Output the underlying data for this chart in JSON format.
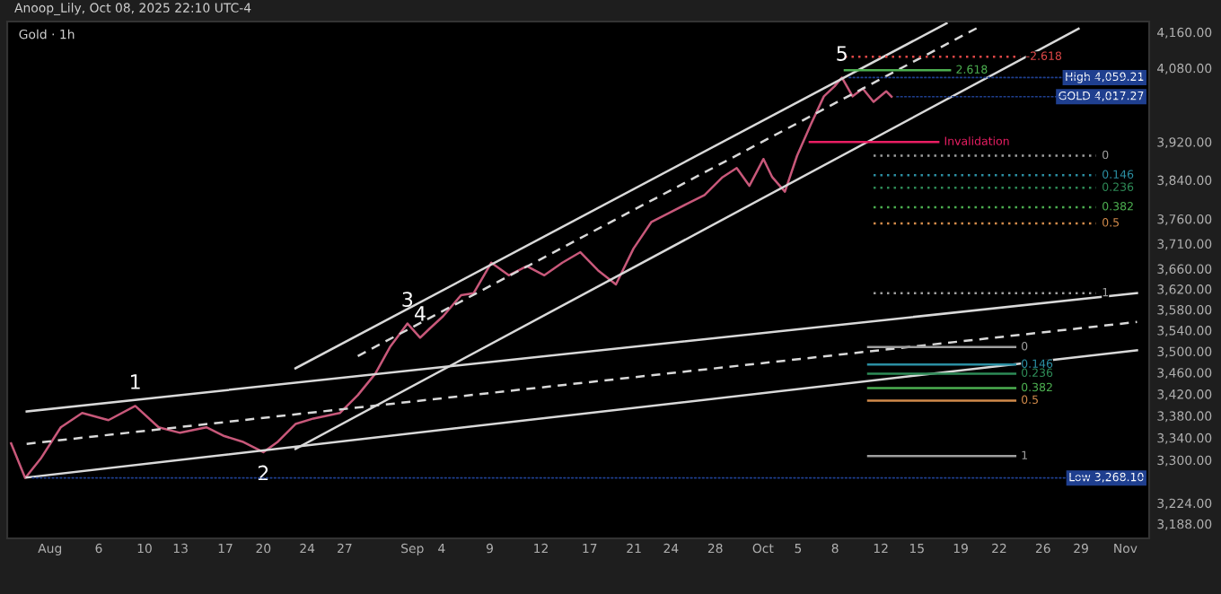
{
  "chart_data": {
    "type": "line",
    "title": "Anoop_Lily, Oct 08, 2025 22:10 UTC-4",
    "subtitle": "Gold · 1h",
    "log": "y",
    "grid": false,
    "legend": false,
    "xlim": [
      "2025-07-28T08:00",
      "2025-11-03T01:00"
    ],
    "ylim": [
      3163,
      4184
    ],
    "xticks": [
      {
        "value": "2025-08-01",
        "label": "Aug"
      },
      {
        "value": "2025-08-05T04:00",
        "label": "6"
      },
      {
        "value": "2025-08-09T02:00",
        "label": "10"
      },
      {
        "value": "2025-08-12T04:00",
        "label": "13"
      },
      {
        "value": "2025-08-16",
        "label": "17"
      },
      {
        "value": "2025-08-19T06:00",
        "label": "20"
      },
      {
        "value": "2025-08-23",
        "label": "24"
      },
      {
        "value": "2025-08-26T05:00",
        "label": "27"
      },
      {
        "value": "2025-09-01",
        "label": "Sep"
      },
      {
        "value": "2025-09-03T12:00",
        "label": "4"
      },
      {
        "value": "2025-09-07T15:00",
        "label": "9"
      },
      {
        "value": "2025-09-12",
        "label": "12"
      },
      {
        "value": "2025-09-16T04:00",
        "label": "17"
      },
      {
        "value": "2025-09-19T23:00",
        "label": "21"
      },
      {
        "value": "2025-09-23T03:00",
        "label": "24"
      },
      {
        "value": "2025-09-26T22:00",
        "label": "28"
      },
      {
        "value": "2025-10-01",
        "label": "Oct"
      },
      {
        "value": "2025-10-04",
        "label": "5"
      },
      {
        "value": "2025-10-07T04:00",
        "label": "8"
      },
      {
        "value": "2025-10-11T02:00",
        "label": "12"
      },
      {
        "value": "2025-10-14T04:00",
        "label": "15"
      },
      {
        "value": "2025-10-17T22:00",
        "label": "19"
      },
      {
        "value": "2025-10-21T05:00",
        "label": "22"
      },
      {
        "value": "2025-10-24T23:00",
        "label": "26"
      },
      {
        "value": "2025-10-28T05:00",
        "label": "29"
      },
      {
        "value": "2025-11-01",
        "label": "Nov"
      }
    ],
    "yticks": [
      {
        "value": 4160,
        "label": "4,160.00"
      },
      {
        "value": 4080,
        "label": "4,080.00"
      },
      {
        "value": 3920,
        "label": "3,920.00"
      },
      {
        "value": 3840,
        "label": "3,840.00"
      },
      {
        "value": 3760,
        "label": "3,760.00"
      },
      {
        "value": 3710,
        "label": "3,710.00"
      },
      {
        "value": 3660,
        "label": "3,660.00"
      },
      {
        "value": 3620,
        "label": "3,620.00"
      },
      {
        "value": 3580,
        "label": "3,580.00"
      },
      {
        "value": 3540,
        "label": "3,540.00"
      },
      {
        "value": 3500,
        "label": "3,500.00"
      },
      {
        "value": 3460,
        "label": "3,460.00"
      },
      {
        "value": 3420,
        "label": "3,420.00"
      },
      {
        "value": 3380,
        "label": "3,380.00"
      },
      {
        "value": 3340,
        "label": "3,340.00"
      },
      {
        "value": 3300,
        "label": "3,300.00"
      },
      {
        "value": 3224,
        "label": "3,224.00"
      },
      {
        "value": 3188,
        "label": "3,188.00"
      }
    ],
    "series": [
      {
        "color": "#c8587a",
        "x": [
          "2025-07-28T16:00",
          "2025-07-29T21:00",
          "2025-07-31T06:00",
          "2025-08-01T22:00",
          "2025-08-03T18:00",
          "2025-08-06",
          "2025-08-08T07:00",
          "2025-08-10T07:00",
          "2025-08-12T03:00",
          "2025-08-14T09:00",
          "2025-08-15T22:00",
          "2025-08-17T11:00",
          "2025-08-19T06:00",
          "2025-08-20T12:00",
          "2025-08-22",
          "2025-08-23T13:00",
          "2025-08-25T19:00",
          "2025-08-27T08:00",
          "2025-08-28T20:00",
          "2025-08-30T02:00",
          "2025-08-31T14:00",
          "2025-09-01T16:00",
          "2025-09-02T10:00",
          "2025-09-03T15:00",
          "2025-09-05T04:00",
          "2025-09-06T06:00",
          "2025-09-07T18:00",
          "2025-09-09T06:00",
          "2025-09-10T19:00",
          "2025-09-12T07:00",
          "2025-09-13T20:00",
          "2025-09-15T09:00",
          "2025-09-16T21:00",
          "2025-09-18T10:00",
          "2025-09-19T22:00",
          "2025-09-21T11:00",
          "2025-09-22T23:00",
          "2025-09-24T12:00",
          "2025-09-26",
          "2025-09-27T13:00",
          "2025-09-28T18:00",
          "2025-09-29T20:00",
          "2025-10-01T01:00",
          "2025-10-01T19:00",
          "2025-10-02T21:00",
          "2025-10-03T22:00",
          "2025-10-05T03:00",
          "2025-10-06T05:00",
          "2025-10-07T03:00",
          "2025-10-07T18:00",
          "2025-10-08T16:00",
          "2025-10-09T13:00",
          "2025-10-10T11:00",
          "2025-10-11T13:00",
          "2025-10-12"
        ],
        "values": [
          3330,
          3268.1,
          3304,
          3359,
          3385,
          3372,
          3398,
          3359,
          3349,
          3359,
          3343,
          3333,
          3314,
          3333,
          3365,
          3375,
          3385,
          3418,
          3458,
          3508,
          3553,
          3526,
          3542,
          3567,
          3608,
          3612,
          3672,
          3647,
          3665,
          3647,
          3672,
          3693,
          3657,
          3629,
          3700,
          3754,
          3772,
          3791,
          3809,
          3846,
          3865,
          3828,
          3884,
          3846,
          3816,
          3891,
          3959,
          4018,
          4040,
          4059,
          4018,
          4035,
          4006,
          4029,
          4017.27
        ]
      },
      {
        "color": "#d9d9d9",
        "x": [
          "2025-07-30",
          "2025-11-02"
        ],
        "values": [
          3388,
          3612
        ]
      },
      {
        "color": "#d9d9d9",
        "line_style": "dashed",
        "x": [
          "2025-07-30",
          "2025-11-02"
        ],
        "values": [
          3329,
          3556
        ]
      },
      {
        "color": "#d9d9d9",
        "x": [
          "2025-07-30",
          "2025-11-02"
        ],
        "values": [
          3269,
          3502
        ]
      },
      {
        "color": "#d9d9d9",
        "x": [
          "2025-08-22",
          "2025-10-16T17:00"
        ],
        "values": [
          3468,
          4180
        ]
      },
      {
        "color": "#d9d9d9",
        "line_style": "dashed",
        "x": [
          "2025-08-27T08:00",
          "2025-10-19T12:00"
        ],
        "values": [
          3491,
          4172
        ]
      },
      {
        "color": "#d9d9d9",
        "x": [
          "2025-08-22",
          "2025-10-28"
        ],
        "values": [
          3320,
          4168
        ]
      },
      {
        "name": "-2.618",
        "color": "#e04848",
        "line_style": "dotted",
        "x": [
          "2025-10-08",
          "2025-10-23"
        ],
        "values": [
          4105,
          4105
        ]
      },
      {
        "name": "2.618",
        "color": "#4caf50",
        "x": [
          "2025-10-08",
          "2025-10-17"
        ],
        "values": [
          4075,
          4075
        ]
      },
      {
        "name": "Invalidation",
        "color": "#e91e63",
        "x": [
          "2025-10-05",
          "2025-10-16"
        ],
        "values": [
          3920,
          3920
        ]
      },
      {
        "name": "0",
        "color": "#9e9e9e",
        "line_style": "dotted",
        "x": [
          "2025-10-10T11:00",
          "2025-10-29T12:00"
        ],
        "values": [
          3891,
          3891
        ]
      },
      {
        "name": "0.146",
        "color": "#2b8fa3",
        "line_style": "dotted",
        "x": [
          "2025-10-10T11:00",
          "2025-10-29T12:00"
        ],
        "values": [
          3850,
          3850
        ]
      },
      {
        "name": "0.236",
        "color": "#2e8b57",
        "line_style": "dotted",
        "x": [
          "2025-10-10T11:00",
          "2025-10-29T12:00"
        ],
        "values": [
          3824,
          3824
        ]
      },
      {
        "name": "0.382",
        "color": "#4caf50",
        "line_style": "dotted",
        "x": [
          "2025-10-10T11:00",
          "2025-10-29T12:00"
        ],
        "values": [
          3784,
          3784
        ]
      },
      {
        "name": "0.5",
        "color": "#d28b4b",
        "line_style": "dotted",
        "x": [
          "2025-10-10T11:00",
          "2025-10-29T12:00"
        ],
        "values": [
          3751,
          3751
        ]
      },
      {
        "name": "1",
        "color": "#9e9e9e",
        "line_style": "dotted",
        "x": [
          "2025-10-10T11:00",
          "2025-10-29T12:00"
        ],
        "values": [
          3612,
          3612
        ]
      },
      {
        "name": "0",
        "color": "#9e9e9e",
        "x": [
          "2025-10-10",
          "2025-10-22T14:00"
        ],
        "values": [
          3508,
          3508
        ]
      },
      {
        "name": "0.146",
        "color": "#2b8fa3",
        "x": [
          "2025-10-10",
          "2025-10-22T14:00"
        ],
        "values": [
          3475,
          3475
        ]
      },
      {
        "name": "0.236",
        "color": "#2e8b57",
        "x": [
          "2025-10-10",
          "2025-10-22T14:00"
        ],
        "values": [
          3458,
          3458
        ]
      },
      {
        "name": "0.382",
        "color": "#4caf50",
        "x": [
          "2025-10-10",
          "2025-10-22T14:00"
        ],
        "values": [
          3431,
          3431
        ]
      },
      {
        "name": "0.5",
        "color": "#d28b4b",
        "x": [
          "2025-10-10",
          "2025-10-22T14:00"
        ],
        "values": [
          3408,
          3408
        ]
      },
      {
        "name": "1",
        "color": "#9e9e9e",
        "x": [
          "2025-10-10",
          "2025-10-22T14:00"
        ],
        "values": [
          3307,
          3307
        ]
      }
    ],
    "annotations": [
      {
        "text": "1",
        "x": "2025-08-08T07:00",
        "y": 3398
      },
      {
        "text": "2",
        "x": "2025-08-19T06:00",
        "y": 3314
      },
      {
        "text": "3",
        "x": "2025-08-31T14:00",
        "y": 3553
      },
      {
        "text": "4",
        "x": "2025-09-01T16:00",
        "y": 3526
      },
      {
        "text": "5",
        "x": "2025-10-07T18:00",
        "y": 4059
      },
      {
        "text": "High 4,059.21",
        "x": "2025-10-07T18:00",
        "y": 4059
      },
      {
        "text": "GOLD 4,017.27",
        "x": "2025-10-12",
        "y": 4017.27
      },
      {
        "text": "Low 3,268.10",
        "x": "2025-07-29T21:00",
        "y": 3268.1
      }
    ]
  }
}
